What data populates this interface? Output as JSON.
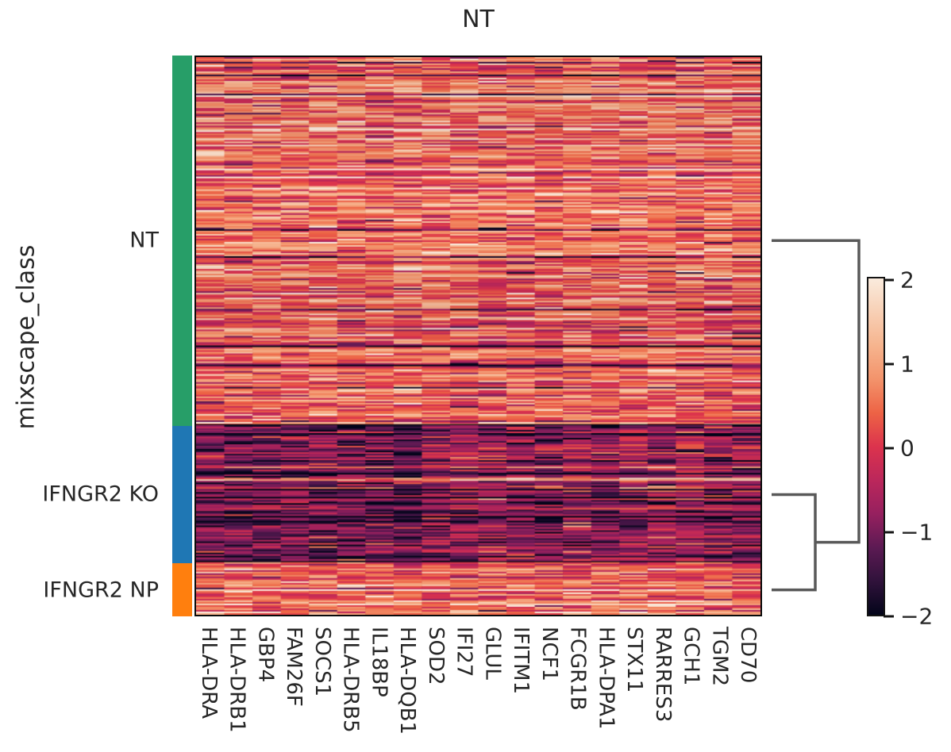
{
  "title": "NT",
  "chart_data": {
    "type": "heatmap",
    "title": "NT",
    "ylabel": "mixscape_class",
    "xlabel": "",
    "genes": [
      "HLA-DRA",
      "HLA-DRB1",
      "GBP4",
      "FAM26F",
      "SOCS1",
      "HLA-DRB5",
      "IL18BP",
      "HLA-DQB1",
      "SOD2",
      "IFI27",
      "GLUL",
      "IFITM1",
      "NCF1",
      "FCGR1B",
      "HLA-DPA1",
      "STX11",
      "RARRES3",
      "GCH1",
      "TGM2",
      "CD70"
    ],
    "row_groups": [
      {
        "label": "NT",
        "annotation_color": "#279e68",
        "rows": 231,
        "mean_by_gene": [
          0.45,
          0.42,
          0.48,
          0.4,
          0.5,
          0.44,
          0.46,
          0.42,
          0.47,
          0.38,
          0.44,
          0.46,
          0.41,
          0.45,
          0.43,
          0.47,
          0.42,
          0.46,
          0.44,
          0.4
        ]
      },
      {
        "label": "IFNGR2 KO",
        "annotation_color": "#1f77b4",
        "rows": 86,
        "mean_by_gene": [
          -0.95,
          -1.2,
          -1.2,
          -1.05,
          -1.1,
          -1.15,
          -1.1,
          -1.2,
          -0.9,
          -0.85,
          -0.75,
          -0.9,
          -1.0,
          -0.7,
          -0.95,
          -0.65,
          -0.7,
          -0.6,
          -0.85,
          -0.9
        ]
      },
      {
        "label": "IFNGR2 NP",
        "annotation_color": "#ff7f0e",
        "rows": 33,
        "mean_by_gene": [
          0.4,
          0.38,
          0.42,
          0.36,
          0.45,
          0.4,
          0.42,
          0.38,
          0.44,
          0.35,
          0.4,
          0.43,
          0.38,
          0.42,
          0.4,
          0.44,
          0.4,
          0.42,
          0.41,
          0.37
        ]
      }
    ],
    "value_range": [
      -2,
      2
    ],
    "noise": {
      "seed": 42,
      "row_sd": 0.4,
      "cell_sd": 0.5,
      "light_streak_prob": 0.03,
      "dark_streak_prob": 0.04,
      "cell_spike_prob": 0.02
    },
    "colormap": {
      "name": "rocket",
      "stops": [
        "#03051A",
        "#30123B",
        "#5C1A53",
        "#96205F",
        "#BB275B",
        "#DC334D",
        "#ED6345",
        "#F3936B",
        "#F6B48E",
        "#F8D0B5",
        "#FAEBDD"
      ]
    },
    "colorbar": {
      "tick_labels": [
        "2",
        "1",
        "0",
        "−1",
        "−2"
      ],
      "tick_values": [
        2,
        1,
        0,
        -1,
        -2
      ]
    },
    "dendrogram": {
      "color": "#595959",
      "structure": "(NT,(IFNGR2 KO,IFNGR2 NP))"
    },
    "grid": false,
    "legend_position": "none"
  }
}
